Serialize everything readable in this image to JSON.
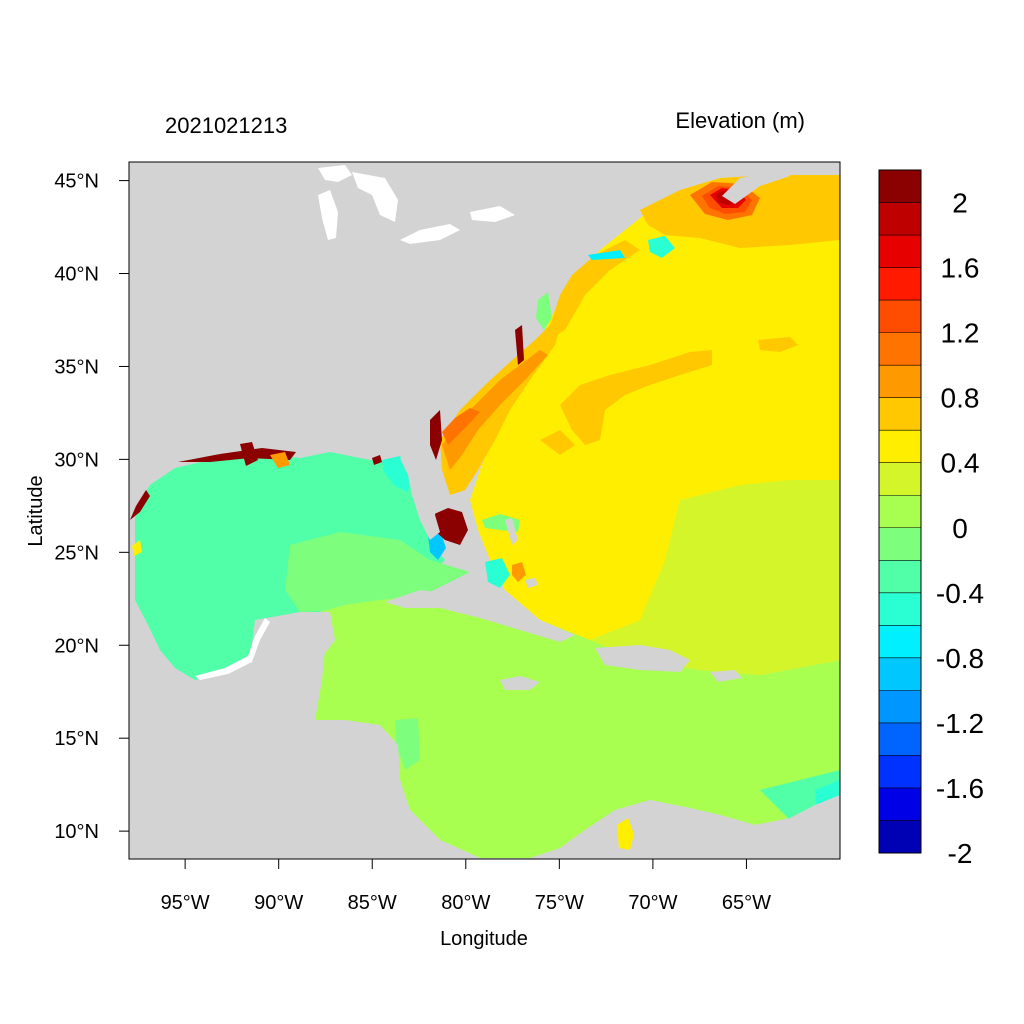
{
  "title_left": "2021021213",
  "title_right": "Elevation (m)",
  "xlabel": "Longitude",
  "ylabel": "Latitude",
  "map": {
    "projection": "cylindrical-equidistant",
    "lon_range": [
      -98,
      -60
    ],
    "lat_range": [
      8.5,
      46
    ],
    "land_color": "#d3d3d3",
    "x_ticks": [
      {
        "value": -95,
        "label": "95°W"
      },
      {
        "value": -90,
        "label": "90°W"
      },
      {
        "value": -85,
        "label": "85°W"
      },
      {
        "value": -80,
        "label": "80°W"
      },
      {
        "value": -75,
        "label": "75°W"
      },
      {
        "value": -70,
        "label": "70°W"
      },
      {
        "value": -65,
        "label": "65°W"
      }
    ],
    "y_ticks": [
      {
        "value": 45,
        "label": "45°N"
      },
      {
        "value": 40,
        "label": "40°N"
      },
      {
        "value": 35,
        "label": "35°N"
      },
      {
        "value": 30,
        "label": "30°N"
      },
      {
        "value": 25,
        "label": "25°N"
      },
      {
        "value": 20,
        "label": "20°N"
      },
      {
        "value": 15,
        "label": "15°N"
      },
      {
        "value": 10,
        "label": "10°N"
      }
    ],
    "regions": [
      {
        "name": "gulf-of-mexico",
        "elevation_approx": -0.3
      },
      {
        "name": "caribbean-sea",
        "elevation_approx": 0.1
      },
      {
        "name": "western-atlantic",
        "elevation_approx": 0.5
      },
      {
        "name": "south-atlantic-bight-coast",
        "elevation_approx": 0.9
      },
      {
        "name": "gulf-of-maine-bay-of-fundy",
        "elevation_approx": 1.4
      },
      {
        "name": "south-florida-coast",
        "elevation_approx": 2.2
      }
    ]
  },
  "colorbar": {
    "colors": [
      "#8b0000",
      "#bf0000",
      "#e60000",
      "#ff1a00",
      "#ff4d00",
      "#ff7300",
      "#ff9900",
      "#ffc800",
      "#ffee00",
      "#d4f52a",
      "#a8ff50",
      "#7dff7d",
      "#50ffa8",
      "#2affd4",
      "#00f0ff",
      "#00c8ff",
      "#0096ff",
      "#0064ff",
      "#0032ff",
      "#0000e6",
      "#0000b4"
    ],
    "tick_labels": [
      {
        "label": "2",
        "value": 2.0
      },
      {
        "label": "1.6",
        "value": 1.6
      },
      {
        "label": "1.2",
        "value": 1.2
      },
      {
        "label": "0.8",
        "value": 0.8
      },
      {
        "label": "0.4",
        "value": 0.4
      },
      {
        "label": "0",
        "value": 0.0
      },
      {
        "label": "-0.4",
        "value": -0.4
      },
      {
        "label": "-0.8",
        "value": -0.8
      },
      {
        "label": "-1.2",
        "value": -1.2
      },
      {
        "label": "-1.6",
        "value": -1.6
      },
      {
        "label": "-2",
        "value": -2.0
      }
    ]
  }
}
